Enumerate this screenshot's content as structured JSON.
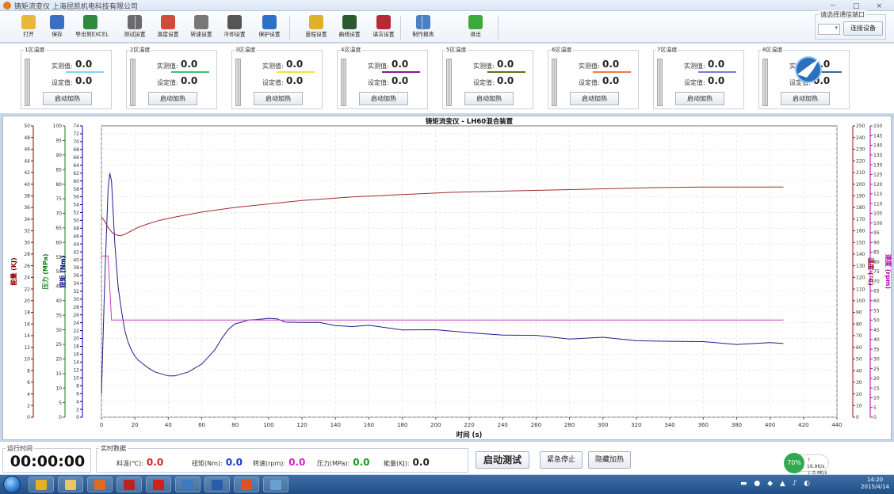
{
  "window": {
    "title": "铸矩流变仪  上海昆凯机电科技有限公司",
    "controls": "－ □ ×"
  },
  "toolbar": {
    "items": [
      {
        "label": "打开",
        "icon": "folder-open-icon",
        "color": "#e8b83a"
      },
      {
        "label": "保存",
        "icon": "save-icon",
        "color": "#3a6fc4"
      },
      {
        "label": "导出到EXCEL",
        "icon": "excel-icon",
        "color": "#2f8a3e"
      },
      {
        "label": "测试设置",
        "icon": "test-settings-icon",
        "color": "#6b6b6b"
      },
      {
        "label": "温度设置",
        "icon": "thermometer-icon",
        "color": "#d24a3a"
      },
      {
        "label": "转速设置",
        "icon": "speed-gauge-icon",
        "color": "#777777"
      },
      {
        "label": "冷却设置",
        "icon": "fan-icon",
        "color": "#555555"
      },
      {
        "label": "保护设置",
        "icon": "shield-globe-icon",
        "color": "#2e6fc7"
      },
      {
        "label": "量程设置",
        "icon": "ruler-icon",
        "color": "#e0b02a"
      },
      {
        "label": "曲线设置",
        "icon": "curve-chart-icon",
        "color": "#2c5a2c"
      },
      {
        "label": "语言设置",
        "icon": "uk-flag-icon",
        "color": "#b62a35"
      },
      {
        "label": "制作报表",
        "icon": "report-chart-icon",
        "color": "#4a7fc4"
      },
      {
        "label": "退出",
        "icon": "exit-icon",
        "color": "#3aaa3a"
      }
    ],
    "comm": {
      "legend": "请选择通信端口",
      "selected": "",
      "connect_label": "连接设备"
    }
  },
  "zones": [
    {
      "name": "1区温度",
      "actual_label": "实测值:",
      "actual": "0.0",
      "set_label": "设定值:",
      "set": "0.0",
      "button": "启动加热",
      "line_color": "#7fd6f0"
    },
    {
      "name": "2区温度",
      "actual_label": "实测值:",
      "actual": "0.0",
      "set_label": "设定值:",
      "set": "0.0",
      "button": "启动加热",
      "line_color": "#3bc46a"
    },
    {
      "name": "3区温度",
      "actual_label": "实测值:",
      "actual": "0.0",
      "set_label": "设定值:",
      "set": "0.0",
      "button": "启动加热",
      "line_color": "#f2e23a"
    },
    {
      "name": "4区温度",
      "actual_label": "实测值:",
      "actual": "0.0",
      "set_label": "设定值:",
      "set": "0.0",
      "button": "启动加热",
      "line_color": "#8b1a8b"
    },
    {
      "name": "5区温度",
      "actual_label": "实测值:",
      "actual": "0.0",
      "set_label": "设定值:",
      "set": "0.0",
      "button": "启动加热",
      "line_color": "#6b6b1a"
    },
    {
      "name": "6区温度",
      "actual_label": "实测值:",
      "actual": "0.0",
      "set_label": "设定值:",
      "set": "0.0",
      "button": "启动加热",
      "line_color": "#f07a3a"
    },
    {
      "name": "7区温度",
      "actual_label": "实测值:",
      "actual": "0.0",
      "set_label": "设定值:",
      "set": "0.0",
      "button": "启动加热",
      "line_color": "#7a7ad6"
    },
    {
      "name": "8区温度",
      "actual_label": "实测值:",
      "actual": "0.0",
      "set_label": "设定值:",
      "set": "0.0",
      "button": "启动加热",
      "line_color": "#3a6a9a"
    }
  ],
  "chart_data": {
    "type": "line",
    "title": "铸矩流变仪 - LH60混合装置",
    "xlabel": "时间 (s)",
    "xlim": [
      0,
      440
    ],
    "x_ticks": [
      0,
      20,
      40,
      60,
      80,
      100,
      120,
      140,
      160,
      180,
      200,
      220,
      240,
      260,
      280,
      300,
      320,
      340,
      360,
      380,
      400,
      420,
      440
    ],
    "grid": true,
    "axes": [
      {
        "label": "能量 (KJ)",
        "side": "left",
        "range": [
          0,
          50
        ],
        "step": 2,
        "color": "#8b0000"
      },
      {
        "label": "压力 (MPa)",
        "side": "left",
        "range": [
          0,
          100
        ],
        "step": 5,
        "color": "#1a7a1a"
      },
      {
        "label": "扭矩 (Nm)",
        "side": "left",
        "range": [
          0,
          74
        ],
        "step": 2,
        "color": "#00008b"
      },
      {
        "label": "温度 (℃)",
        "side": "right",
        "range": [
          0,
          250
        ],
        "step": 10,
        "color": "#8b1a1a"
      },
      {
        "label": "速度 (rpm)",
        "side": "right",
        "range": [
          0,
          150
        ],
        "step": 5,
        "color": "#b000b0"
      }
    ],
    "series": [
      {
        "axis": "扭矩 (Nm)",
        "color": "#1e1e8c",
        "x": [
          0,
          2,
          4,
          5,
          6,
          7,
          8,
          10,
          12,
          14,
          16,
          18,
          20,
          22,
          25,
          28,
          32,
          36,
          40,
          44,
          48,
          52,
          56,
          60,
          64,
          68,
          72,
          76,
          80,
          84,
          88,
          92,
          96,
          100,
          105,
          110,
          120,
          130,
          140,
          150,
          160,
          180,
          200,
          220,
          240,
          260,
          280,
          300,
          320,
          340,
          360,
          380,
          400,
          408
        ],
        "y": [
          6,
          35,
          58,
          62,
          60,
          52,
          44,
          33,
          27,
          22,
          19,
          17,
          15.5,
          14.5,
          13.5,
          12.5,
          11.5,
          11,
          10.5,
          10.5,
          11,
          11.5,
          12.5,
          13.5,
          15,
          17,
          20,
          22.5,
          24,
          24.5,
          25,
          25,
          25,
          25,
          24.8,
          24.5,
          24,
          23.8,
          23.5,
          23.2,
          23,
          22.5,
          22,
          21.5,
          21,
          20.5,
          20.2,
          20,
          19.6,
          19.3,
          19,
          18.8,
          18.6,
          18.5
        ]
      },
      {
        "axis": "温度 (℃)",
        "color": "#a52a2a",
        "x": [
          0,
          2,
          4,
          6,
          8,
          10,
          12,
          14,
          18,
          22,
          28,
          35,
          45,
          60,
          80,
          100,
          120,
          150,
          180,
          210,
          240,
          270,
          300,
          330,
          360,
          390,
          408
        ],
        "y": [
          172,
          168,
          163,
          159,
          157,
          156,
          156,
          157,
          160,
          163,
          166,
          169,
          172,
          176,
          180,
          183,
          186,
          189,
          191,
          193,
          194,
          195,
          196,
          197,
          197.5,
          197.5,
          197.5
        ]
      },
      {
        "axis": "速度 (rpm)",
        "color": "#c040c0",
        "x": [
          0,
          2,
          4,
          6,
          8,
          10,
          40,
          60,
          100,
          160,
          200,
          300,
          408
        ],
        "y": [
          83,
          83,
          83,
          50,
          50,
          50,
          50,
          50,
          50,
          50,
          50,
          50,
          50
        ]
      }
    ]
  },
  "status": {
    "runtime_legend": "运行时间",
    "runtime": "00:00:00",
    "realtime_legend": "实时数据",
    "items": [
      {
        "label": "料温(℃):",
        "value": "0.0",
        "color": "#d62020"
      },
      {
        "label": "扭矩(Nm):",
        "value": "0.0",
        "color": "#1a3ad0"
      },
      {
        "label": "转速(rpm):",
        "value": "0.0",
        "color": "#d020d0"
      },
      {
        "label": "压力(MPa):",
        "value": "0.0",
        "color": "#1a9a1a"
      },
      {
        "label": "能量(KJ):",
        "value": "0.0",
        "color": "#222222"
      }
    ],
    "start_test": "启动测试",
    "emergency_stop": "紧急停止",
    "hide_heating": "隐藏加热",
    "net": {
      "percent": "70%",
      "up": "16.9K/s",
      "down": "0.4K/s"
    }
  },
  "taskbar": {
    "apps": [
      {
        "icon": "qq-icon",
        "color": "#e8b020"
      },
      {
        "icon": "file-explorer-icon",
        "color": "#e8c860"
      },
      {
        "icon": "firefox-icon",
        "color": "#e06a20"
      },
      {
        "icon": "autocad-icon",
        "color": "#c02020"
      },
      {
        "icon": "pdf-icon",
        "color": "#d02020"
      },
      {
        "icon": "app-bird-icon",
        "color": "#3a7ac0"
      },
      {
        "icon": "word-icon",
        "color": "#2a5aa8"
      },
      {
        "icon": "sogou-icon",
        "color": "#e05020"
      },
      {
        "icon": "paint-icon",
        "color": "#6aa0d0"
      }
    ],
    "time": "14:20",
    "date": "2015/4/14"
  }
}
